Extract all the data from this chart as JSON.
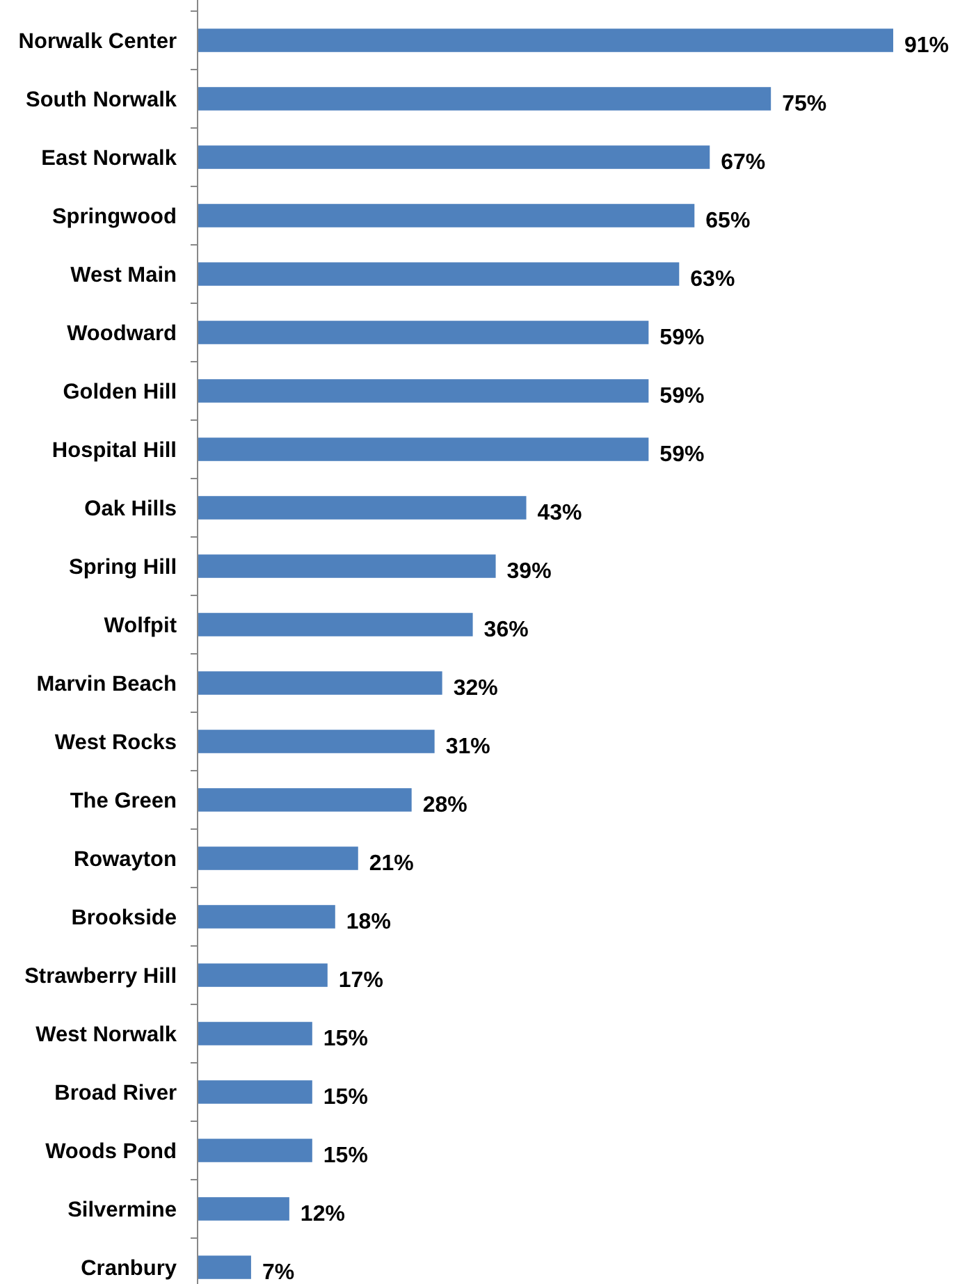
{
  "chart_data": {
    "type": "bar",
    "orientation": "horizontal",
    "categories": [
      "Norwalk Center",
      "South Norwalk",
      "East Norwalk",
      "Springwood",
      "West Main",
      "Woodward",
      "Golden Hill",
      "Hospital Hill",
      "Oak Hills",
      "Spring Hill",
      "Wolfpit",
      "Marvin Beach",
      "West Rocks",
      "The Green",
      "Rowayton",
      "Brookside",
      "Strawberry Hill",
      "West Norwalk",
      "Broad River",
      "Woods Pond",
      "Silvermine",
      "Cranbury"
    ],
    "values": [
      91,
      75,
      67,
      65,
      63,
      59,
      59,
      59,
      43,
      39,
      36,
      32,
      31,
      28,
      21,
      18,
      17,
      15,
      15,
      15,
      12,
      7
    ],
    "value_labels": [
      "91%",
      "75%",
      "67%",
      "65%",
      "63%",
      "59%",
      "59%",
      "59%",
      "43%",
      "39%",
      "36%",
      "32%",
      "31%",
      "28%",
      "21%",
      "18%",
      "17%",
      "15%",
      "15%",
      "15%",
      "12%",
      "7%"
    ],
    "color": "#4f81bd"
  }
}
